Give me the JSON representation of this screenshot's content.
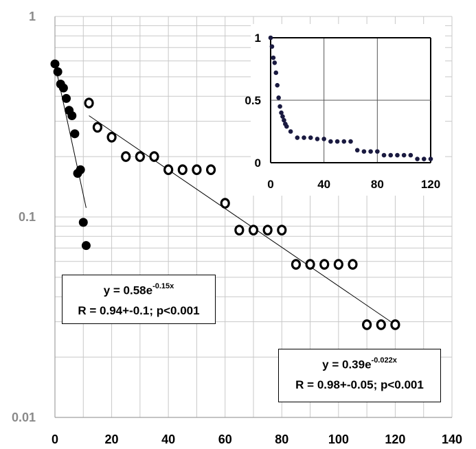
{
  "chart_data": [
    {
      "type": "scatter",
      "yscale": "log",
      "xlim": [
        0,
        140
      ],
      "ylim": [
        0.01,
        1
      ],
      "grid": true,
      "x_ticks": [
        "0",
        "20",
        "40",
        "60",
        "80",
        "100",
        "120",
        "140"
      ],
      "y_ticks": [
        "0.01",
        "0.1",
        "1"
      ],
      "series": [
        {
          "marker": "filled-circle",
          "x": [
            0,
            1,
            2,
            3,
            4,
            5,
            6,
            7,
            8,
            9,
            10,
            11
          ],
          "y": [
            0.58,
            0.53,
            0.46,
            0.44,
            0.39,
            0.34,
            0.32,
            0.26,
            0.165,
            0.172,
            0.094,
            0.072
          ],
          "fit": {
            "x": [
              0,
              11
            ],
            "y": [
              0.58,
              0.111
            ]
          }
        },
        {
          "marker": "open-circle",
          "x": [
            12,
            15,
            20,
            25,
            30,
            35,
            40,
            45,
            50,
            55,
            60,
            65,
            70,
            75,
            80,
            85,
            90,
            95,
            100,
            105,
            110,
            115,
            120
          ],
          "y": [
            0.37,
            0.28,
            0.25,
            0.2,
            0.2,
            0.2,
            0.172,
            0.172,
            0.172,
            0.172,
            0.117,
            0.086,
            0.086,
            0.086,
            0.086,
            0.058,
            0.058,
            0.058,
            0.058,
            0.058,
            0.029,
            0.029,
            0.029
          ],
          "fit": {
            "x": [
              12,
              120
            ],
            "y": [
              0.32,
              0.029
            ]
          }
        }
      ],
      "annotations": [
        {
          "pre": "y = 0.58e",
          "exp": "-0.15x",
          "line2": "R = 0.94+-0.1; p<0.001"
        },
        {
          "pre": "y = 0.39e",
          "exp": "-0.022x",
          "line2": "R = 0.98+-0.05; p<0.001"
        }
      ]
    },
    {
      "type": "scatter",
      "inset": true,
      "xlim": [
        0,
        120
      ],
      "ylim": [
        0,
        1
      ],
      "grid": true,
      "x_ticks": [
        "0",
        "40",
        "80",
        "120"
      ],
      "y_ticks": [
        "0",
        "0.5",
        "1"
      ],
      "series": [
        {
          "marker": "filled-dot",
          "x": [
            0,
            1,
            2,
            3,
            4,
            5,
            6,
            7,
            8,
            9,
            10,
            11,
            12,
            15,
            20,
            25,
            30,
            35,
            40,
            45,
            50,
            55,
            60,
            65,
            70,
            75,
            80,
            85,
            90,
            95,
            100,
            105,
            110,
            115,
            120
          ],
          "y": [
            1,
            0.93,
            0.84,
            0.8,
            0.72,
            0.62,
            0.52,
            0.45,
            0.4,
            0.37,
            0.34,
            0.31,
            0.29,
            0.25,
            0.2,
            0.2,
            0.2,
            0.19,
            0.19,
            0.17,
            0.17,
            0.17,
            0.17,
            0.1,
            0.09,
            0.09,
            0.09,
            0.06,
            0.06,
            0.06,
            0.06,
            0.06,
            0.03,
            0.03,
            0.03
          ]
        }
      ]
    }
  ]
}
